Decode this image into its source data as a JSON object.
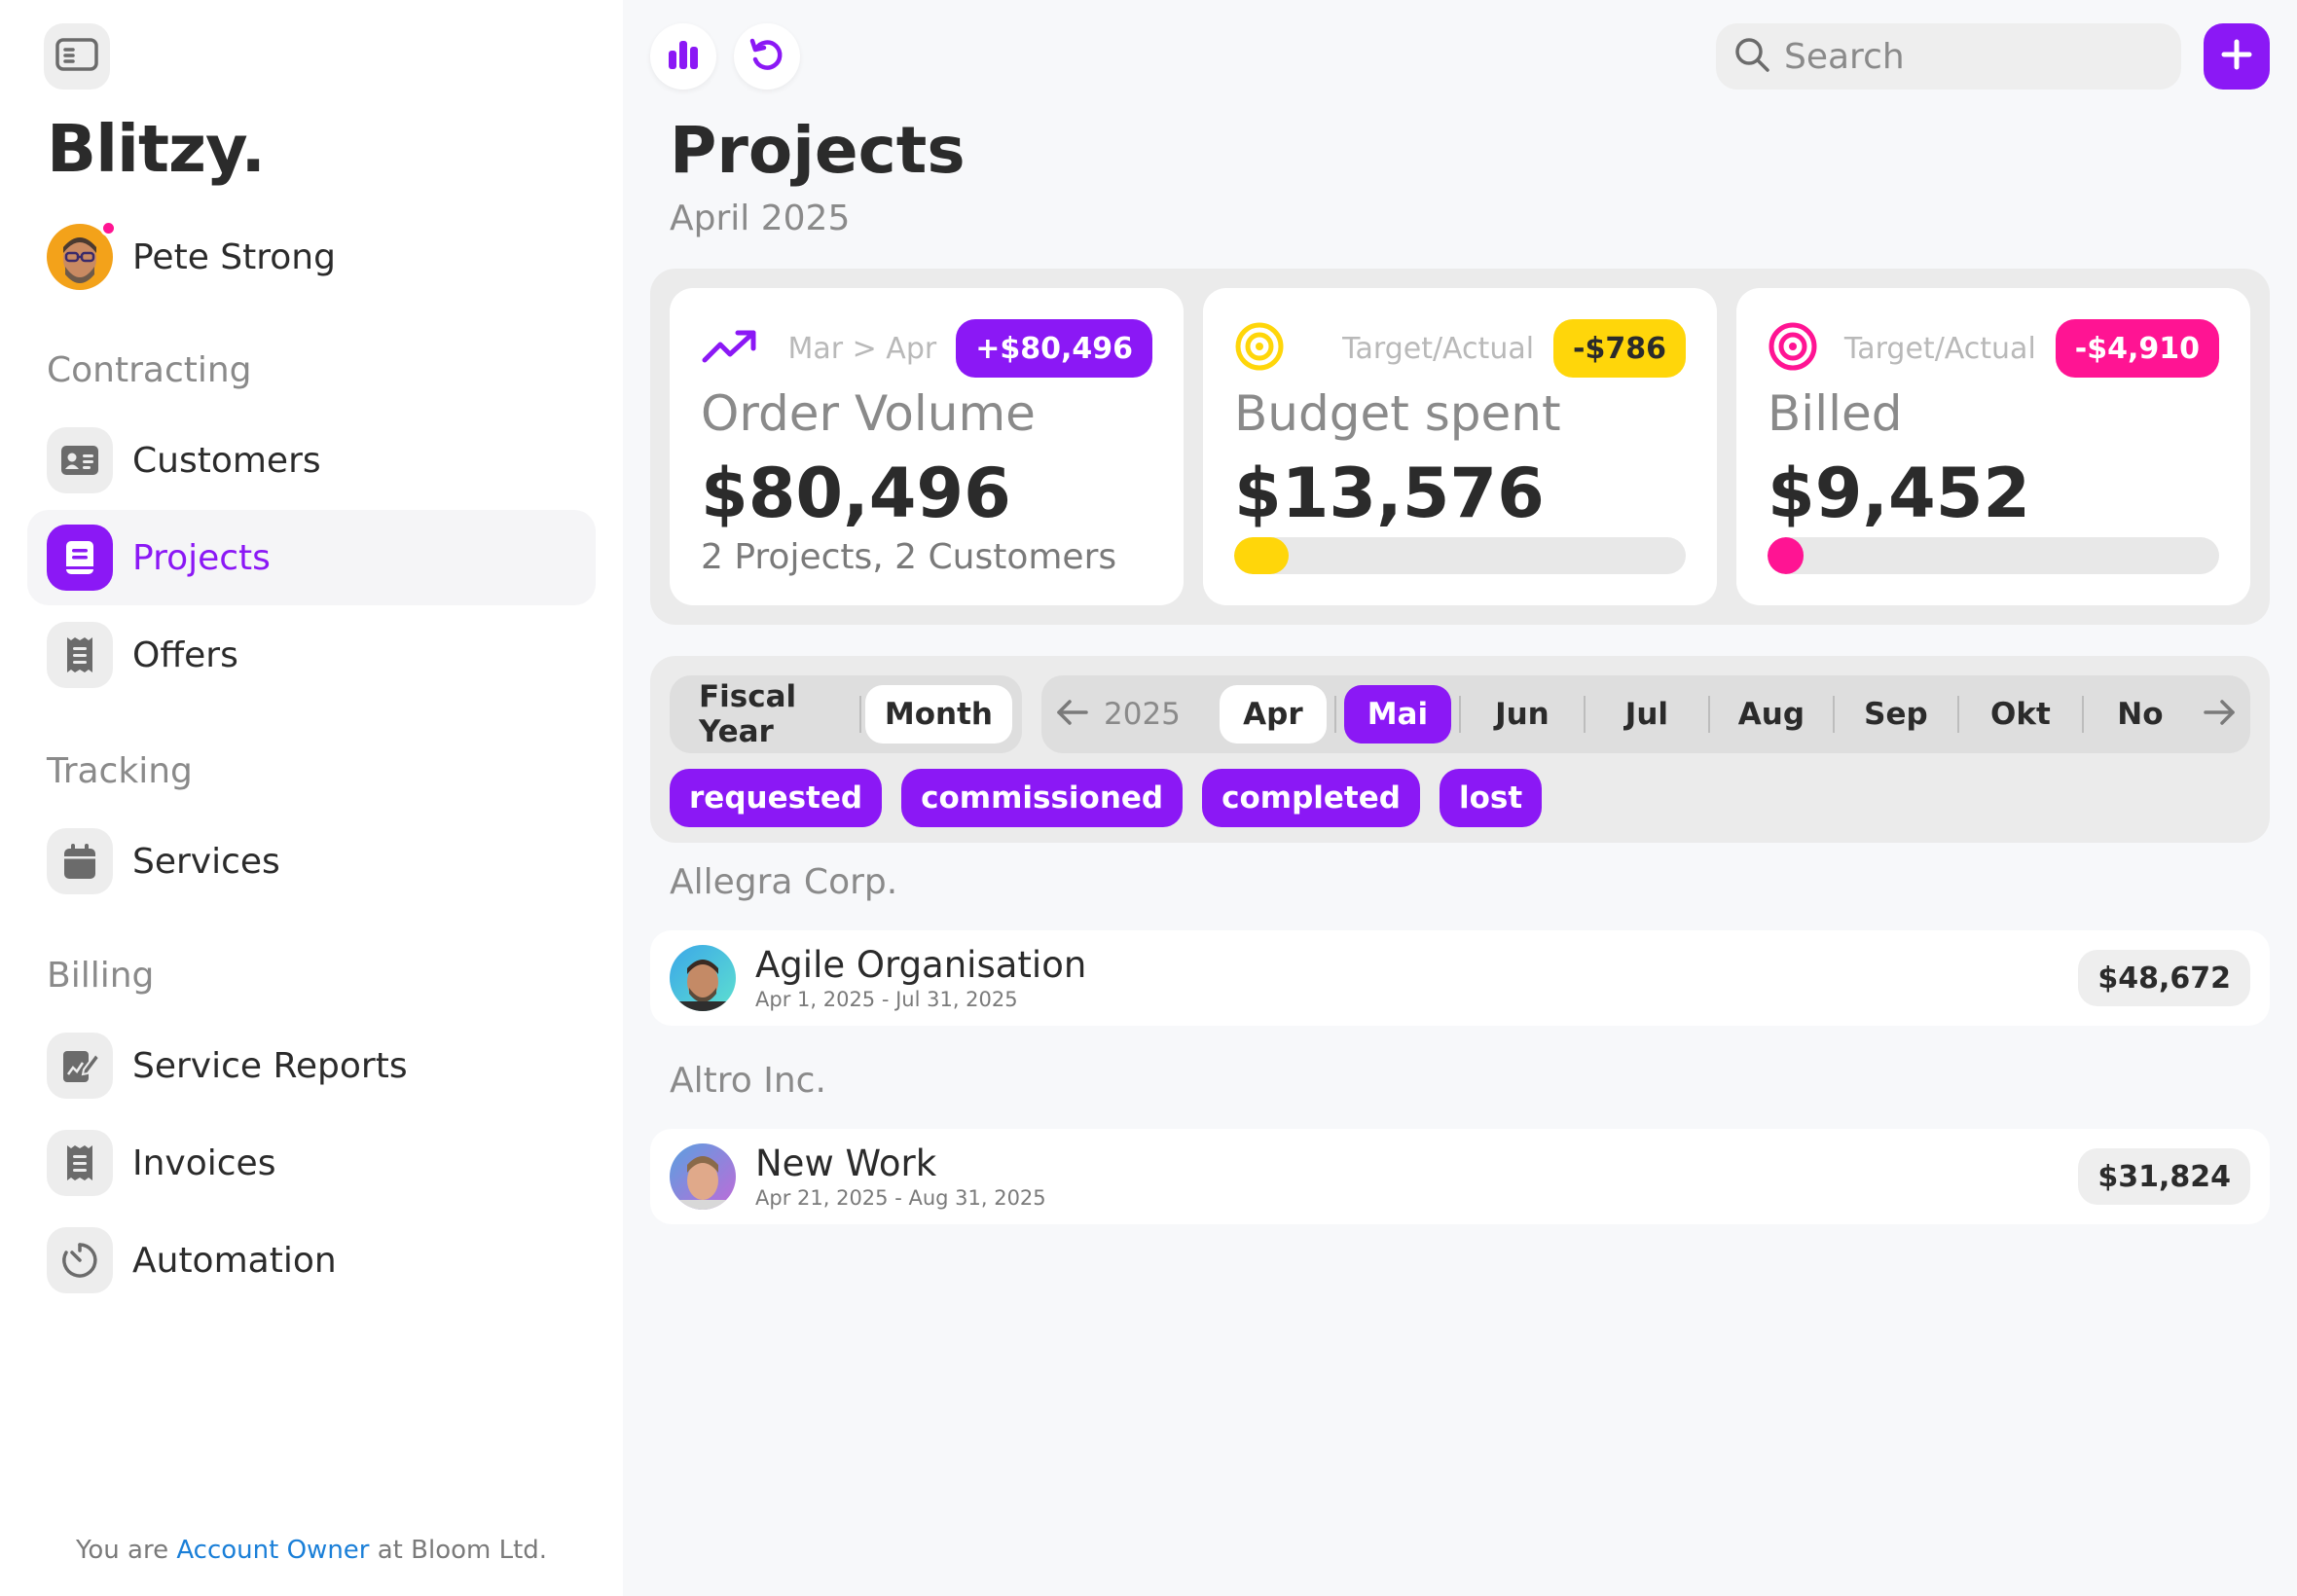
{
  "app": {
    "brand": "Blitzy."
  },
  "user": {
    "name": "Pete Strong"
  },
  "sidebar": {
    "sections": [
      {
        "label": "Contracting",
        "items": [
          {
            "label": "Customers",
            "icon": "id-card-icon"
          },
          {
            "label": "Projects",
            "icon": "project-book-icon",
            "active": true
          },
          {
            "label": "Offers",
            "icon": "receipt-icon"
          }
        ]
      },
      {
        "label": "Tracking",
        "items": [
          {
            "label": "Services",
            "icon": "calendar-icon"
          }
        ]
      },
      {
        "label": "Billing",
        "items": [
          {
            "label": "Service Reports",
            "icon": "report-edit-icon"
          },
          {
            "label": "Invoices",
            "icon": "receipt-icon"
          },
          {
            "label": "Automation",
            "icon": "timer-icon"
          }
        ]
      }
    ],
    "footer": {
      "prefix": "You are",
      "role": "Account Owner",
      "suffix": "at Bloom Ltd."
    }
  },
  "toolbar": {
    "search_placeholder": "Search"
  },
  "page": {
    "title": "Projects",
    "subtitle": "April 2025"
  },
  "kpis": [
    {
      "icon": "trend-up-icon",
      "meta": "Mar > Apr",
      "badge": "+$80,496",
      "badge_color": "#8b18f5",
      "badge_text": "#ffffff",
      "title": "Order Volume",
      "value": "$80,496",
      "sub": "2 Projects, 2 Customers"
    },
    {
      "icon": "target-icon",
      "icon_color": "#ffd60a",
      "meta": "Target/Actual",
      "badge": "-$786",
      "badge_color": "#ffd60a",
      "badge_text": "#2b2b2b",
      "title": "Budget spent",
      "value": "$13,576",
      "progress": 0.12,
      "bar_color": "#ffd60a"
    },
    {
      "icon": "target-icon",
      "icon_color": "#ff1493",
      "meta": "Target/Actual",
      "badge": "-$4,910",
      "badge_color": "#ff1493",
      "badge_text": "#ffffff",
      "title": "Billed",
      "value": "$9,452",
      "progress": 0.08,
      "bar_color": "#ff1493"
    }
  ],
  "filters": {
    "period_tabs": [
      "Fiscal Year",
      "Month"
    ],
    "period_active": "Month",
    "year": "2025",
    "months": [
      "Apr",
      "Mai",
      "Jun",
      "Jul",
      "Aug",
      "Sep",
      "Okt",
      "No"
    ],
    "current_month": "Apr",
    "selected_month": "Mai",
    "statuses": [
      "requested",
      "commissioned",
      "completed",
      "lost"
    ]
  },
  "groups": [
    {
      "customer": "Allegra Corp.",
      "projects": [
        {
          "name": "Agile Organisation",
          "dates": "Apr 1, 2025 - Jul 31, 2025",
          "amount": "$48,672"
        }
      ]
    },
    {
      "customer": "Altro Inc.",
      "projects": [
        {
          "name": "New Work",
          "dates": "Apr 21, 2025 - Aug 31, 2025",
          "amount": "$31,824"
        }
      ]
    }
  ],
  "colors": {
    "accent": "#8b18f5",
    "yellow": "#ffd60a",
    "pink": "#ff1493",
    "link": "#1a7fd8"
  }
}
